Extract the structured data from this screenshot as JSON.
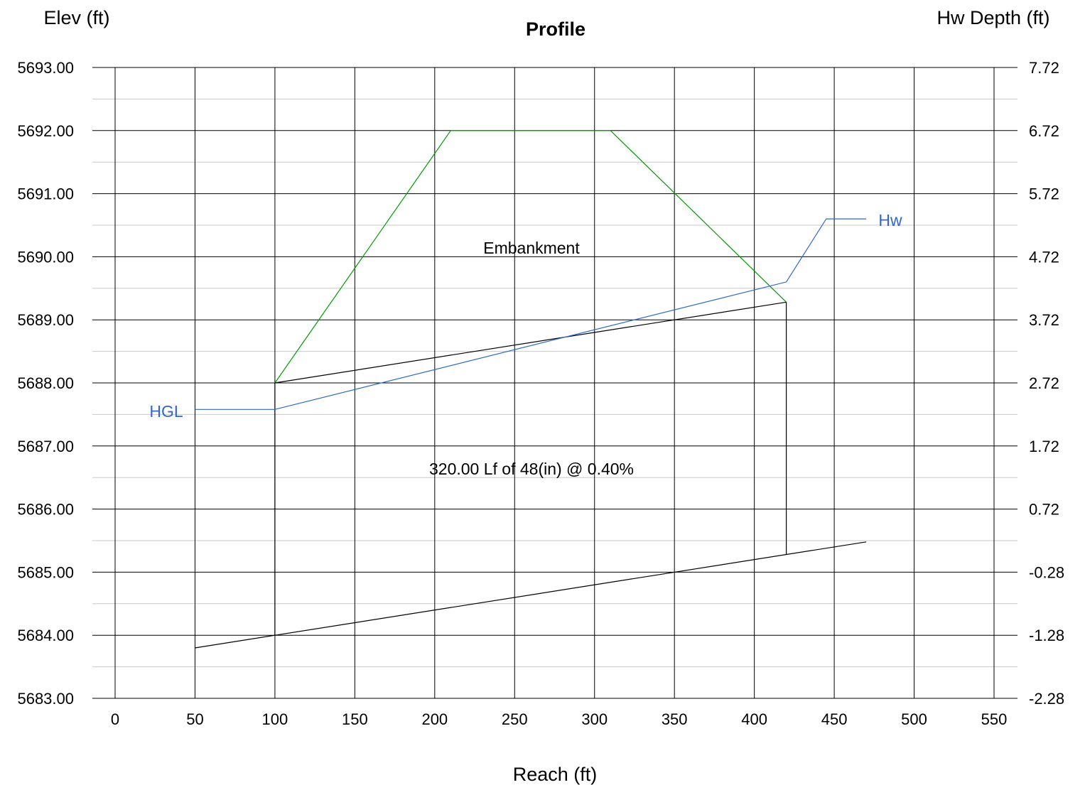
{
  "chart_data": {
    "type": "line",
    "title": "Profile",
    "xlabel": "Reach (ft)",
    "ylabel_left": "Elev (ft)",
    "ylabel_right": "Hw Depth (ft)",
    "xlim": [
      0,
      550
    ],
    "ylim": [
      5683.0,
      5693.0
    ],
    "x_ticks": [
      "0",
      "50",
      "100",
      "150",
      "200",
      "250",
      "300",
      "350",
      "400",
      "450",
      "500",
      "550"
    ],
    "x_tick_values": [
      0,
      50,
      100,
      150,
      200,
      250,
      300,
      350,
      400,
      450,
      500,
      550
    ],
    "y_ticks_left": [
      "5693.00",
      "5692.00",
      "5691.00",
      "5690.00",
      "5689.00",
      "5688.00",
      "5687.00",
      "5686.00",
      "5685.00",
      "5684.00",
      "5683.00"
    ],
    "y_tick_values_left": [
      5693,
      5692,
      5691,
      5690,
      5689,
      5688,
      5687,
      5686,
      5685,
      5684,
      5683
    ],
    "y_ticks_right": [
      "7.72",
      "6.72",
      "5.72",
      "4.72",
      "3.72",
      "2.72",
      "1.72",
      "0.72",
      "-0.28",
      "-1.28",
      "-2.28"
    ],
    "grid": true,
    "series": [
      {
        "name": "Embankment",
        "color": "#009900",
        "points": [
          [
            100,
            5688.0
          ],
          [
            210,
            5692.0
          ],
          [
            310,
            5692.0
          ],
          [
            420,
            5689.28
          ]
        ]
      },
      {
        "name": "",
        "color": "#000000",
        "points": [
          [
            100,
            5688.0
          ],
          [
            420,
            5689.28
          ]
        ]
      },
      {
        "name": "",
        "color": "#000000",
        "points": [
          [
            50,
            5683.8
          ],
          [
            470,
            5685.48
          ]
        ]
      },
      {
        "name": "",
        "color": "#000000",
        "points": [
          [
            100,
            5684.0
          ],
          [
            100,
            5688.0
          ]
        ]
      },
      {
        "name": "",
        "color": "#000000",
        "points": [
          [
            420,
            5685.28
          ],
          [
            420,
            5689.28
          ]
        ]
      },
      {
        "name": "HGL",
        "color": "#3366cc",
        "points": [
          [
            50,
            5687.58
          ],
          [
            100,
            5687.58
          ],
          [
            420,
            5689.6
          ],
          [
            445,
            5690.6
          ],
          [
            470,
            5690.6
          ]
        ]
      }
    ],
    "annotations": {
      "embankment": "Embankment",
      "pipe": "320.00 Lf of 48(in) @ 0.40%",
      "hgl": "HGL",
      "hw": "Hw"
    }
  }
}
